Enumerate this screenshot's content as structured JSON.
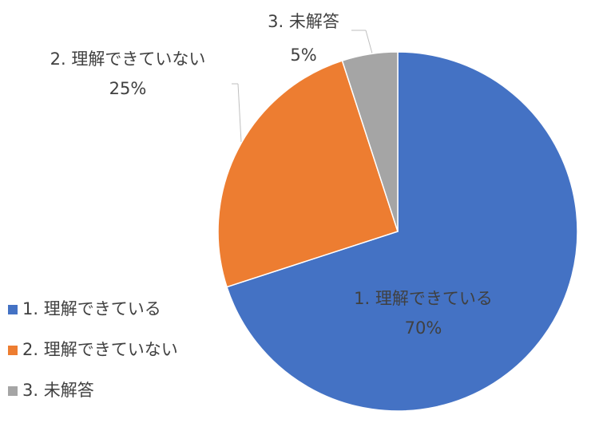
{
  "chart_data": {
    "type": "pie",
    "categories": [
      "1. 理解できている",
      "2. 理解できていない",
      "3. 未解答"
    ],
    "values": [
      70,
      25,
      5
    ],
    "value_labels": [
      "70%",
      "25%",
      "5%"
    ],
    "colors": [
      "#4472c4",
      "#ed7d31",
      "#a5a5a5"
    ],
    "legend": "left"
  }
}
